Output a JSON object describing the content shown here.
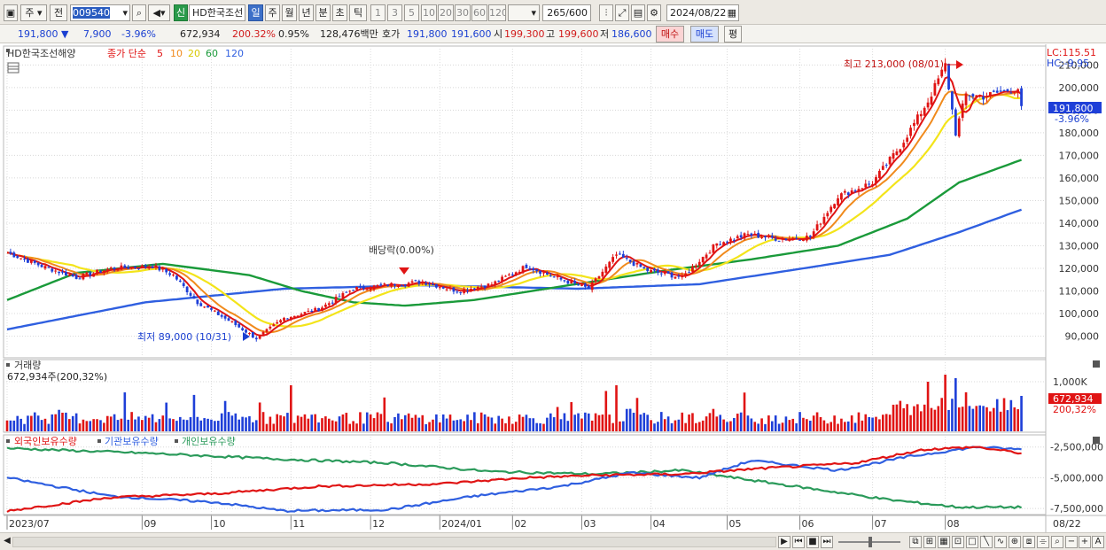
{
  "toolbar": {
    "type_label": "주",
    "prev_label": "전",
    "stock_code": "009540",
    "stock_name": "HD한국조선",
    "credit_badge": "신",
    "period_tabs": [
      "일",
      "주",
      "월",
      "년",
      "분",
      "초",
      "틱"
    ],
    "minute_options": [
      "1",
      "3",
      "5",
      "10",
      "20",
      "30",
      "60",
      "120"
    ],
    "count_display": "265/600",
    "date_value": "2024/08/22"
  },
  "quote": {
    "price": "191,800",
    "change": "7,900",
    "change_rate": "-3.96%",
    "volume": "672,934",
    "volume_ratio": "200.32%",
    "turnover": "0.95%",
    "trade_value": "128,476백만",
    "ask_label": "호가",
    "ask1": "191,800",
    "ask2": "191,600",
    "open_label": "시",
    "open": "199,300",
    "high_label": "고",
    "high": "199,600",
    "low_label": "저",
    "low": "186,600",
    "buy_label": "매수",
    "sell_label": "매도",
    "eval_label": "평"
  },
  "colors": {
    "up": "#e01414",
    "down": "#1e3fd8",
    "ma5": "#e01414",
    "ma10": "#f08a1c",
    "ma20": "#f3e41a",
    "ma60": "#1a9a3a",
    "ma120": "#2f5fe0",
    "foreign": "#e01414",
    "institution": "#2f5fe0",
    "individual": "#2a9a5a"
  },
  "chart_data": [
    {
      "type": "line",
      "panel": "price",
      "title": "HD한국조선해양",
      "legend_prefix": "종가 단순",
      "ma_periods": [
        "5",
        "10",
        "20",
        "60",
        "120"
      ],
      "y_ticks": [
        "90,000",
        "100,000",
        "110,000",
        "120,000",
        "130,000",
        "140,000",
        "150,000",
        "160,000",
        "170,000",
        "180,000",
        "190,000",
        "200,000",
        "210,000"
      ],
      "ylim": [
        82000,
        216000
      ],
      "lc_label": "LC:115.51",
      "hc_label": "HC:-9.95",
      "current_price_label": "191,800",
      "current_rate_label": "-3.96%",
      "annotations": {
        "high": "최고 213,000 (08/01)",
        "low": "최저 89,000 (10/31)",
        "dividend": "배당락(0.00%)"
      },
      "x_labels": [
        "2023/07",
        "09",
        "10",
        "11",
        "12",
        "2024/01",
        "02",
        "03",
        "04",
        "05",
        "06",
        "07",
        "08",
        "08/22"
      ],
      "x_label_index": [
        0,
        39,
        59,
        82,
        105,
        125,
        146,
        166,
        186,
        208,
        229,
        250,
        271,
        299
      ],
      "total_bars": 300,
      "close_anchors": [
        [
          0,
          127000
        ],
        [
          10,
          121000
        ],
        [
          20,
          116000
        ],
        [
          30,
          120000
        ],
        [
          42,
          121000
        ],
        [
          48,
          117000
        ],
        [
          55,
          105000
        ],
        [
          65,
          96000
        ],
        [
          72,
          89000
        ],
        [
          80,
          98000
        ],
        [
          90,
          102000
        ],
        [
          100,
          111000
        ],
        [
          112,
          113000
        ],
        [
          120,
          114000
        ],
        [
          130,
          110000
        ],
        [
          140,
          113000
        ],
        [
          150,
          121000
        ],
        [
          160,
          115000
        ],
        [
          168,
          111000
        ],
        [
          176,
          126000
        ],
        [
          185,
          119000
        ],
        [
          195,
          116000
        ],
        [
          205,
          131000
        ],
        [
          214,
          135000
        ],
        [
          223,
          133000
        ],
        [
          232,
          134000
        ],
        [
          240,
          152000
        ],
        [
          250,
          158000
        ],
        [
          258,
          174000
        ],
        [
          266,
          194000
        ],
        [
          271,
          210000
        ],
        [
          274,
          180000
        ],
        [
          277,
          197000
        ],
        [
          282,
          196000
        ],
        [
          287,
          198000
        ],
        [
          292,
          199700
        ],
        [
          293,
          191800
        ]
      ],
      "ma60_anchors": [
        [
          0,
          106000
        ],
        [
          20,
          118000
        ],
        [
          45,
          122000
        ],
        [
          70,
          117000
        ],
        [
          85,
          110000
        ],
        [
          100,
          105000
        ],
        [
          115,
          103500
        ],
        [
          135,
          106000
        ],
        [
          160,
          112000
        ],
        [
          190,
          119000
        ],
        [
          215,
          124000
        ],
        [
          240,
          130000
        ],
        [
          260,
          142000
        ],
        [
          275,
          158000
        ],
        [
          293,
          168000
        ]
      ],
      "ma120_anchors": [
        [
          0,
          93000
        ],
        [
          40,
          105000
        ],
        [
          80,
          111000
        ],
        [
          120,
          112500
        ],
        [
          165,
          111000
        ],
        [
          200,
          113000
        ],
        [
          230,
          120000
        ],
        [
          255,
          126000
        ],
        [
          275,
          136000
        ],
        [
          293,
          146000
        ]
      ]
    },
    {
      "type": "bar",
      "panel": "volume",
      "title": "거래량",
      "summary": "672,934주(200,32%)",
      "y_ticks": [
        "1,000K"
      ],
      "current_label": "672,934",
      "current_rate_label": "200,32%"
    },
    {
      "type": "line",
      "panel": "holdings",
      "series_names": [
        "외국인보유수량",
        "기관보유수량",
        "개인보유수량"
      ],
      "y_ticks": [
        "-2,500,000",
        "-5,000,000",
        "-7,500,000"
      ],
      "ylim": [
        -8000000,
        -1800000
      ],
      "foreign_anchors": [
        [
          0,
          -7700000
        ],
        [
          30,
          -6600000
        ],
        [
          60,
          -6300000
        ],
        [
          90,
          -5700000
        ],
        [
          125,
          -5500000
        ],
        [
          150,
          -5000000
        ],
        [
          170,
          -4800000
        ],
        [
          195,
          -4700000
        ],
        [
          215,
          -4300000
        ],
        [
          245,
          -3800000
        ],
        [
          265,
          -2700000
        ],
        [
          280,
          -2500000
        ],
        [
          293,
          -3000000
        ]
      ],
      "institution_anchors": [
        [
          0,
          -5000000
        ],
        [
          30,
          -6500000
        ],
        [
          60,
          -7000000
        ],
        [
          80,
          -7700000
        ],
        [
          110,
          -7600000
        ],
        [
          135,
          -6500000
        ],
        [
          160,
          -5700000
        ],
        [
          180,
          -4600000
        ],
        [
          200,
          -5000000
        ],
        [
          215,
          -3600000
        ],
        [
          240,
          -4400000
        ],
        [
          260,
          -3300000
        ],
        [
          280,
          -2500000
        ],
        [
          293,
          -2700000
        ]
      ],
      "individual_anchors": [
        [
          0,
          -2600000
        ],
        [
          40,
          -3000000
        ],
        [
          80,
          -3500000
        ],
        [
          110,
          -3800000
        ],
        [
          140,
          -4500000
        ],
        [
          170,
          -4700000
        ],
        [
          195,
          -4400000
        ],
        [
          215,
          -5200000
        ],
        [
          235,
          -6000000
        ],
        [
          255,
          -6800000
        ],
        [
          275,
          -7400000
        ],
        [
          293,
          -7400000
        ]
      ]
    }
  ]
}
